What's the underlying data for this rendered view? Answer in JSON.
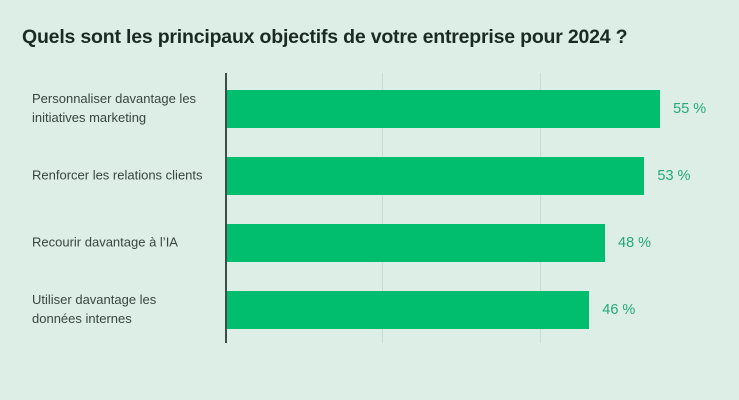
{
  "chart_data": {
    "type": "bar",
    "orientation": "horizontal",
    "title": "Quels sont les principaux objectifs de votre entreprise pour 2024 ?",
    "categories": [
      "Personnaliser davantage les initiatives marketing",
      "Renforcer les relations clients",
      "Recourir davantage à l’IA",
      "Utiliser davantage les données internes"
    ],
    "values": [
      55,
      53,
      48,
      46
    ],
    "unit": "%",
    "xlabel": "",
    "ylabel": "",
    "xlim": [
      0,
      65
    ],
    "gridlines_x": [
      20,
      40
    ],
    "grid": "vertical-only",
    "legend": "none",
    "colors": {
      "background": "#DDEEE6",
      "bar": "#00BE6E",
      "value_label": "#25A878",
      "title": "#1A2B23",
      "category_label": "#37463F",
      "axis": "#3E4E46",
      "gridline": "#C7DDD3"
    }
  },
  "chart": {
    "rows": [
      {
        "label": "Personnaliser davantage les\ninitiatives marketing",
        "value_label": "55 %"
      },
      {
        "label": "Renforcer les relations clients",
        "value_label": "53 %"
      },
      {
        "label": "Recourir davantage à l’IA",
        "value_label": "48 %"
      },
      {
        "label": "Utiliser davantage les\ndonnées internes",
        "value_label": "46 %"
      }
    ]
  }
}
